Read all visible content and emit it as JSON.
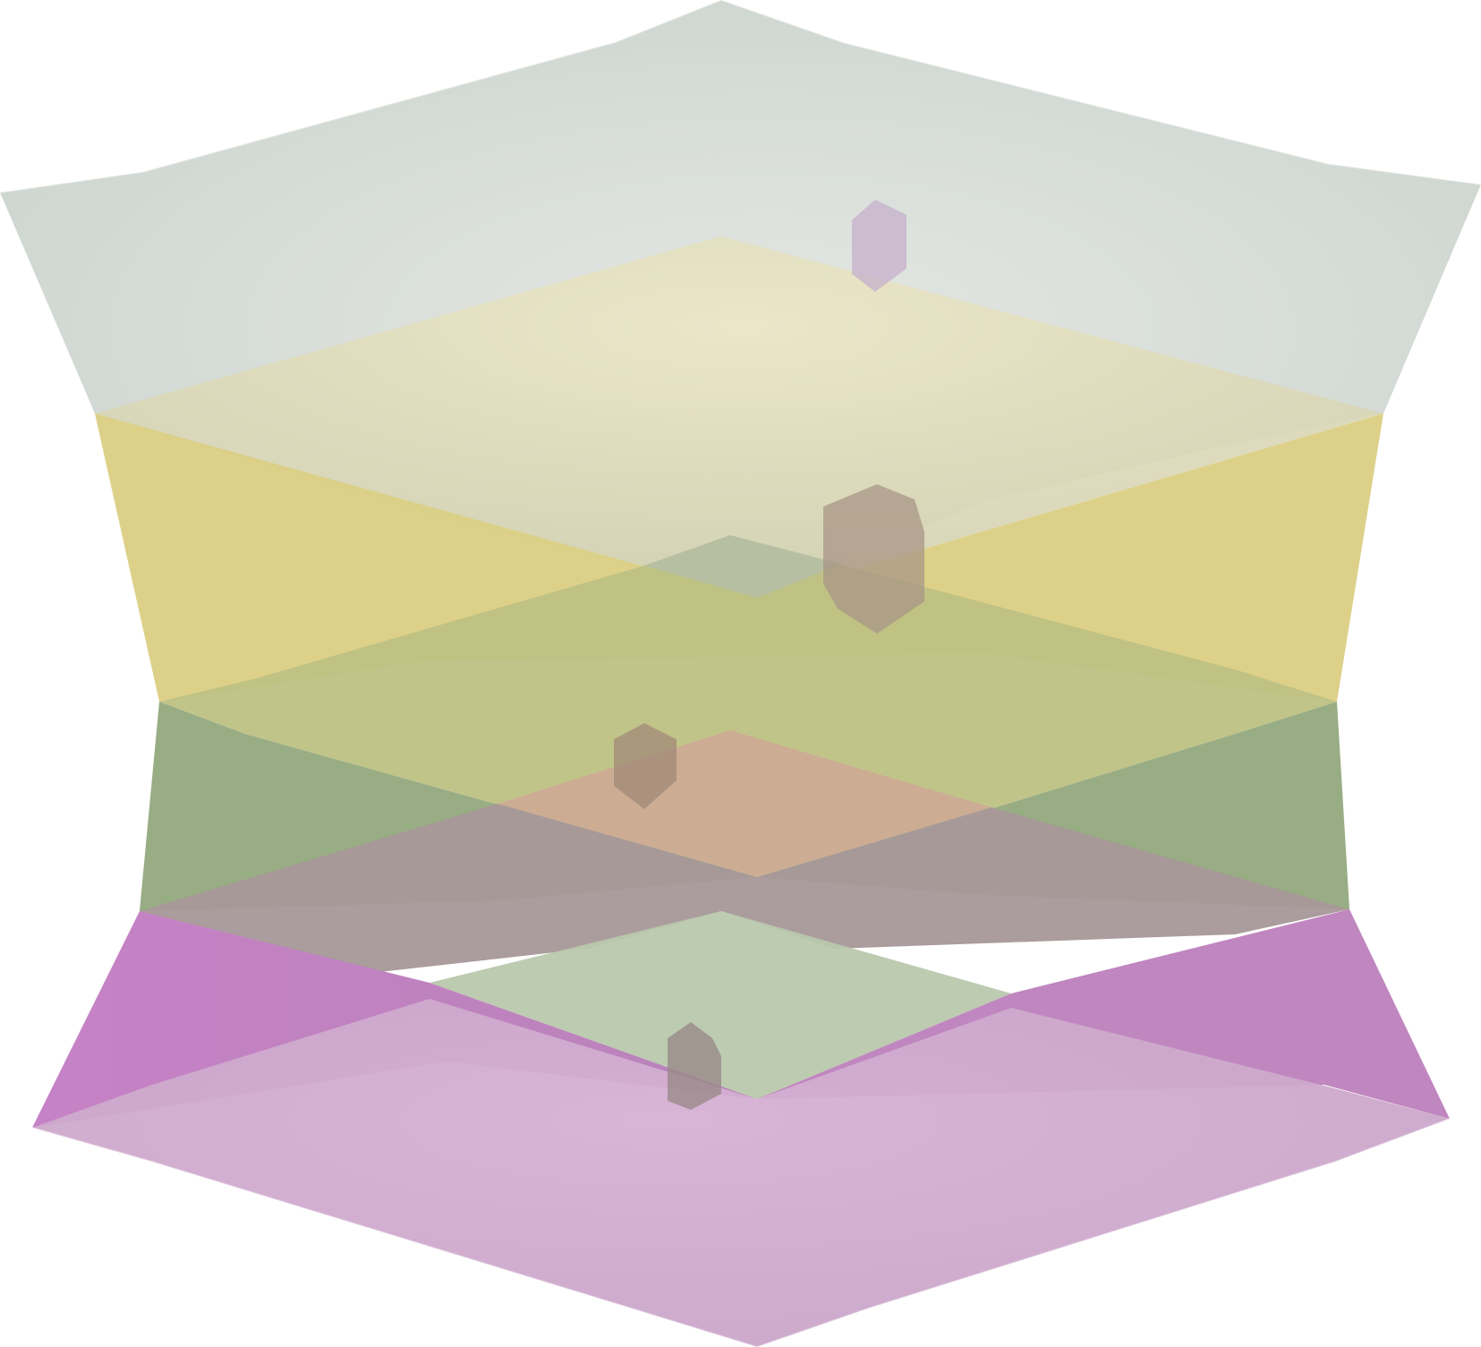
{
  "image": {
    "subject": "translucent-layered-crystal",
    "background_color": "#ffffff"
  },
  "palette": {
    "top_band_light": "#e4e7e3",
    "top_band_dark": "#cdd5cf",
    "cream_floor": "#e6e0c0",
    "yellow_band": "#dbcf84",
    "olive_floor": "#bec183",
    "green_band": "#94a97d",
    "peach_floor": "#cdab96",
    "mauve_overlap": "#a69898",
    "magenta_band": "#bd80bc",
    "sage_floor": "#b9c8ad",
    "lilac_floor": "#d1acd2",
    "crystal_inclusion": "#8f7a72"
  },
  "layers": [
    {
      "name": "top-band",
      "color": "#d4dbd6"
    },
    {
      "name": "yellow-band",
      "color": "#dbcf84"
    },
    {
      "name": "green-band",
      "color": "#94a97d"
    },
    {
      "name": "magenta-band",
      "color": "#bd80bc"
    }
  ],
  "inclusions": [
    {
      "name": "lilac-inclusion",
      "color": "#c7b3cc"
    },
    {
      "name": "taupe-inclusion-large",
      "color": "#a89686"
    },
    {
      "name": "taupe-inclusion-small",
      "color": "#a08a78"
    },
    {
      "name": "taupe-inclusion-bottom",
      "color": "#9a8a8a"
    }
  ]
}
